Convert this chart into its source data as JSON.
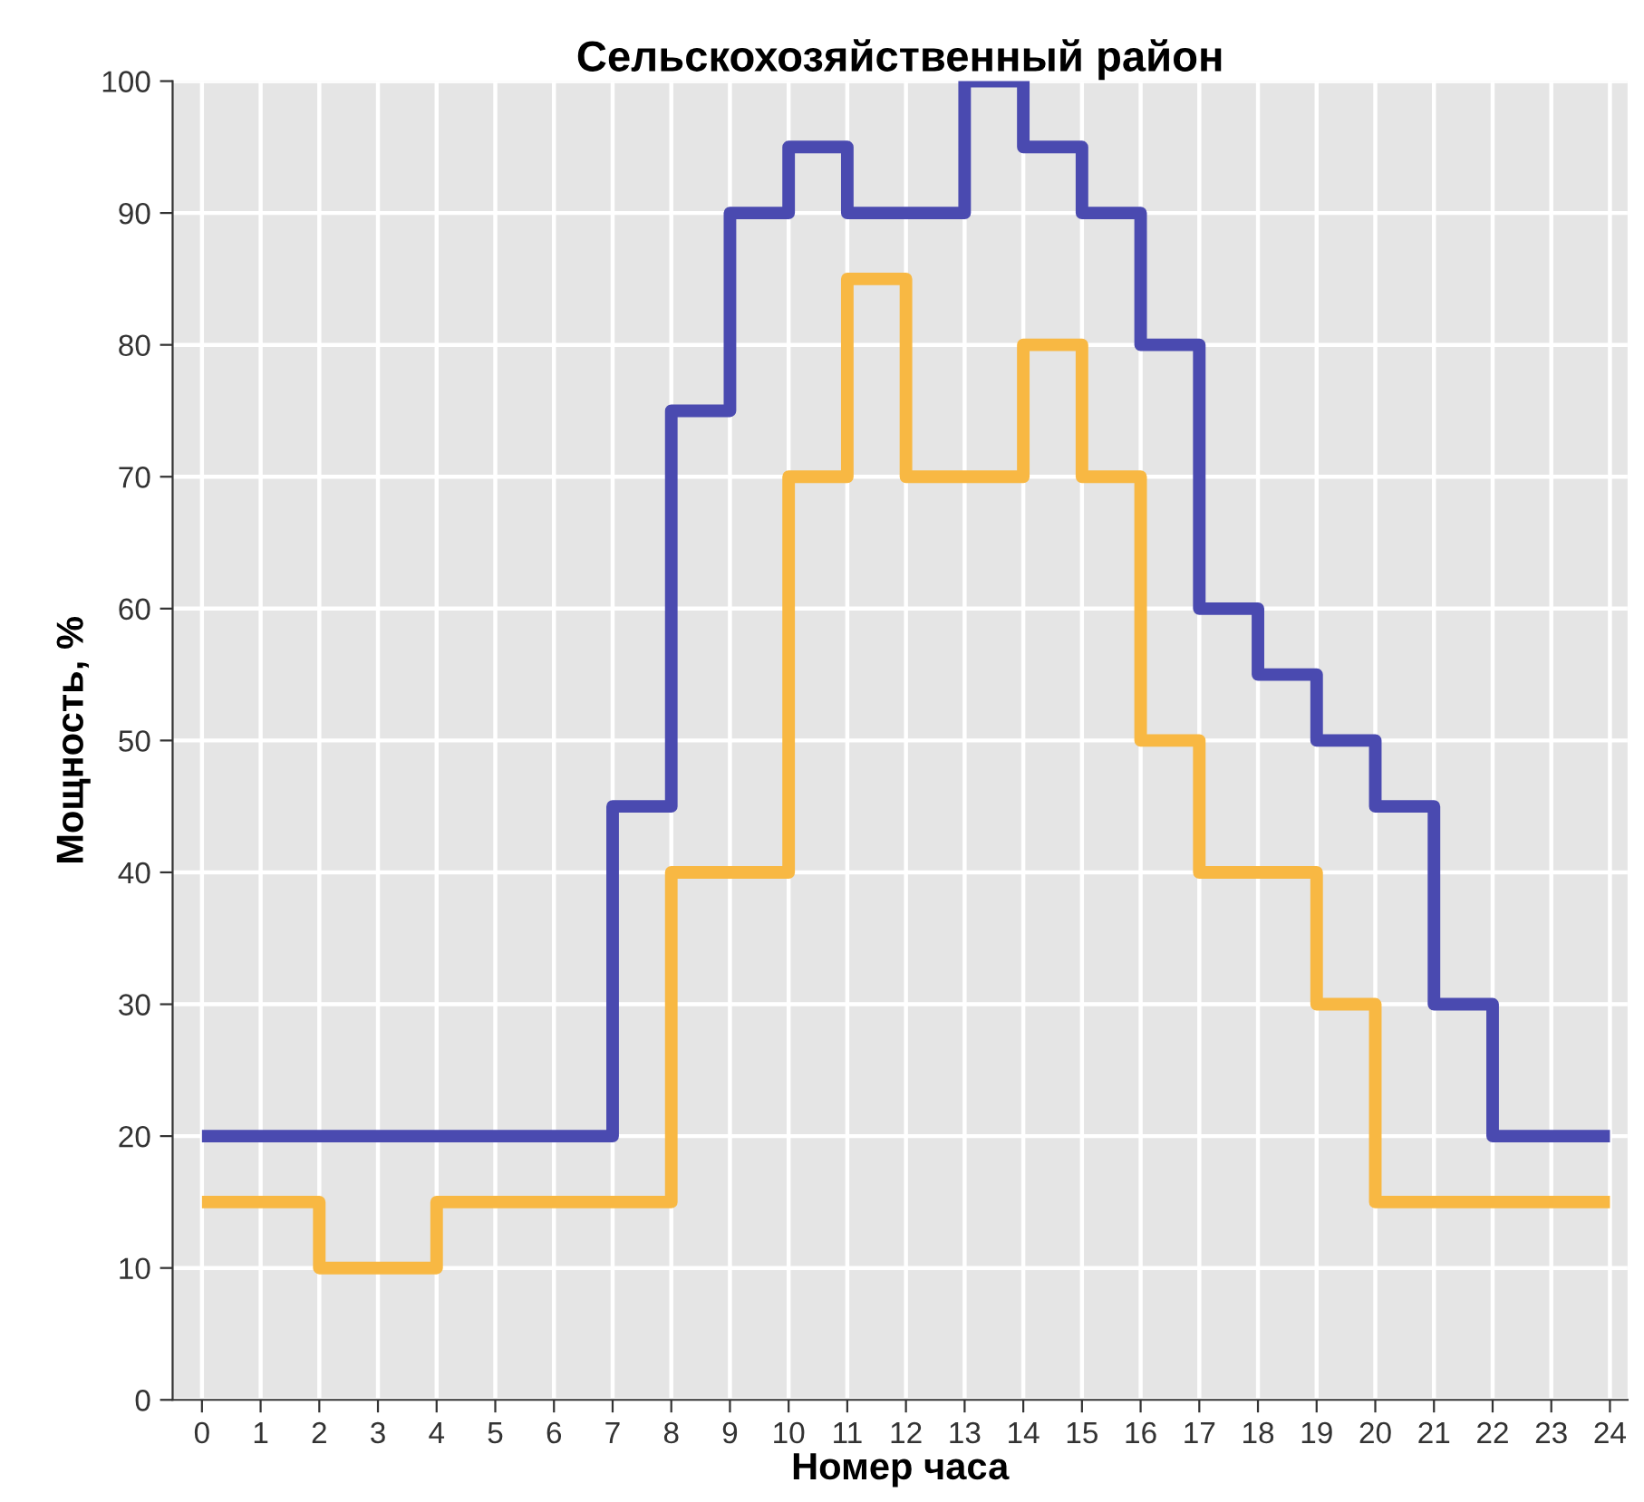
{
  "chart_data": {
    "type": "step",
    "title": "Сельскохозяйственный район",
    "xlabel": "Номер часа",
    "ylabel": "Мощность, %",
    "x": [
      0,
      1,
      2,
      3,
      4,
      5,
      6,
      7,
      8,
      9,
      10,
      11,
      12,
      13,
      14,
      15,
      16,
      17,
      18,
      19,
      20,
      21,
      22,
      23,
      24
    ],
    "series": [
      {
        "color": "#4a4ab0",
        "values": [
          20,
          20,
          20,
          20,
          20,
          20,
          20,
          45,
          75,
          90,
          95,
          90,
          90,
          100,
          95,
          90,
          80,
          60,
          55,
          50,
          45,
          30,
          20,
          20,
          20
        ]
      },
      {
        "color": "#f8b843",
        "values": [
          15,
          15,
          10,
          10,
          15,
          15,
          15,
          15,
          40,
          40,
          70,
          85,
          70,
          70,
          80,
          70,
          50,
          40,
          40,
          30,
          15,
          15,
          15,
          15,
          15
        ]
      }
    ],
    "xlim": [
      -0.5,
      24.3
    ],
    "xticks": [
      0,
      1,
      2,
      3,
      4,
      5,
      6,
      7,
      8,
      9,
      10,
      11,
      12,
      13,
      14,
      15,
      16,
      17,
      18,
      19,
      20,
      21,
      22,
      23,
      24
    ],
    "ylim": [
      0,
      100
    ],
    "yticks": [
      0,
      10,
      20,
      30,
      40,
      50,
      60,
      70,
      80,
      90,
      100
    ],
    "grid": true,
    "legend": false
  }
}
